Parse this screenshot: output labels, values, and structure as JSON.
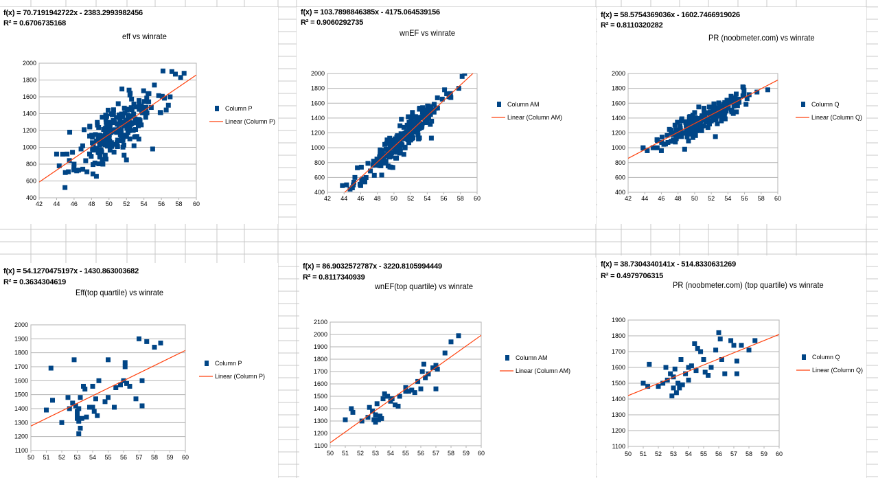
{
  "chart_data": [
    {
      "type": "scatter",
      "equation": "f(x) = 70.7191942722x - 2383.2993982456",
      "r_squared": "R² = 0.6706735168",
      "title": "eff vs winrate",
      "xlim": [
        42,
        60
      ],
      "ylim": [
        400,
        2000
      ],
      "xticks": [
        42,
        44,
        46,
        48,
        50,
        52,
        54,
        56,
        58,
        60
      ],
      "yticks": [
        400,
        600,
        800,
        1000,
        1200,
        1400,
        1600,
        1800,
        2000
      ],
      "legend": [
        "Column P",
        "Linear (Column P)"
      ],
      "trendline": {
        "slope": 70.7191942722,
        "intercept": -2383.2993982456
      },
      "cloud": {
        "center_x": 51,
        "sd_x": 2.8,
        "sd_y": 160,
        "count": 220,
        "seed": 11
      },
      "points": [
        [
          44,
          920
        ],
        [
          44.3,
          780
        ],
        [
          45,
          700
        ],
        [
          45.2,
          920
        ],
        [
          45.5,
          1180
        ],
        [
          46,
          800
        ],
        [
          46.3,
          720
        ],
        [
          46.8,
          980
        ],
        [
          47,
          740
        ],
        [
          55,
          980
        ],
        [
          57,
          1600
        ],
        [
          57.2,
          1900
        ],
        [
          57.6,
          1870
        ],
        [
          58.2,
          1830
        ],
        [
          58.6,
          1880
        ],
        [
          52.3,
          1680
        ],
        [
          56.8,
          1500
        ],
        [
          55.2,
          1740
        ],
        [
          52,
          850
        ],
        [
          49.3,
          800
        ]
      ]
    },
    {
      "type": "scatter",
      "equation": "f(x) = 103.7898846385x - 4175.064539156",
      "r_squared": "R² = 0.9060292735",
      "title": "wnEF vs winrate",
      "xlim": [
        42,
        60
      ],
      "ylim": [
        400,
        2000
      ],
      "xticks": [
        42,
        44,
        46,
        48,
        50,
        52,
        54,
        56,
        58,
        60
      ],
      "yticks": [
        400,
        600,
        800,
        1000,
        1200,
        1400,
        1600,
        1800,
        2000
      ],
      "legend": [
        "Column AM",
        "Linear (Column AM)"
      ],
      "trendline": {
        "slope": 103.7898846385,
        "intercept": -4175.064539156
      },
      "cloud": {
        "center_x": 51,
        "sd_x": 2.9,
        "sd_y": 90,
        "count": 220,
        "seed": 23
      },
      "points": [
        [
          43.8,
          490
        ],
        [
          44.3,
          500
        ],
        [
          45,
          460
        ],
        [
          45.3,
          600
        ],
        [
          45.6,
          730
        ],
        [
          46,
          490
        ],
        [
          46.5,
          540
        ],
        [
          54.5,
          1130
        ],
        [
          57.8,
          1800
        ],
        [
          58.2,
          1960
        ],
        [
          58.5,
          2000
        ],
        [
          56.8,
          1730
        ]
      ]
    },
    {
      "type": "scatter",
      "equation": "f(x) = 58.5754369036x - 1602.7466919026",
      "r_squared": "R² = 0.8110320282",
      "title": "PR (noobmeter.com) vs winrate",
      "xlim": [
        42,
        60
      ],
      "ylim": [
        400,
        2000
      ],
      "xticks": [
        42,
        44,
        46,
        48,
        50,
        52,
        54,
        56,
        58,
        60
      ],
      "yticks": [
        400,
        600,
        800,
        1000,
        1200,
        1400,
        1600,
        1800,
        2000
      ],
      "legend": [
        "Column Q",
        "Linear (Column Q)"
      ],
      "trendline": {
        "slope": 58.5754369036,
        "intercept": -1602.7466919026
      },
      "cloud": {
        "center_x": 51,
        "sd_x": 2.9,
        "sd_y": 80,
        "count": 220,
        "seed": 37
      },
      "points": [
        [
          43.8,
          1000
        ],
        [
          44.3,
          960
        ],
        [
          45,
          1000
        ],
        [
          45.5,
          1000
        ],
        [
          46,
          960
        ],
        [
          46.5,
          1050
        ],
        [
          48.8,
          980
        ],
        [
          52.5,
          1150
        ],
        [
          58.8,
          1780
        ],
        [
          57.5,
          1750
        ],
        [
          55.8,
          1820
        ]
      ]
    },
    {
      "type": "scatter",
      "equation": "f(x) = 54.1270475197x - 1430.863003682",
      "r_squared": "R² = 0.3634304619",
      "title": "Eff(top quartile)  vs winrate",
      "xlim": [
        50,
        60
      ],
      "ylim": [
        1100,
        2000
      ],
      "xticks": [
        50,
        51,
        52,
        53,
        54,
        55,
        56,
        57,
        58,
        59,
        60
      ],
      "yticks": [
        1100,
        1200,
        1300,
        1400,
        1500,
        1600,
        1700,
        1800,
        1900,
        2000
      ],
      "legend": [
        "Column P",
        "Linear (Column P)"
      ],
      "trendline": {
        "slope": 54.1270475197,
        "intercept": -1430.863003682
      },
      "points": [
        [
          51,
          1390
        ],
        [
          51.3,
          1690
        ],
        [
          51.4,
          1460
        ],
        [
          52,
          1300
        ],
        [
          52.4,
          1480
        ],
        [
          52.5,
          1400
        ],
        [
          52.7,
          1440
        ],
        [
          52.8,
          1750
        ],
        [
          52.9,
          1420
        ],
        [
          53,
          1380
        ],
        [
          53,
          1350
        ],
        [
          53,
          1330
        ],
        [
          53.1,
          1400
        ],
        [
          53.1,
          1310
        ],
        [
          53.1,
          1220
        ],
        [
          53.2,
          1260
        ],
        [
          53.2,
          1480
        ],
        [
          53.3,
          1330
        ],
        [
          53.4,
          1560
        ],
        [
          53.5,
          1540
        ],
        [
          53.6,
          1340
        ],
        [
          53.8,
          1410
        ],
        [
          54,
          1410
        ],
        [
          54,
          1560
        ],
        [
          54.1,
          1380
        ],
        [
          54.2,
          1470
        ],
        [
          54.3,
          1350
        ],
        [
          54.4,
          1600
        ],
        [
          54.8,
          1450
        ],
        [
          55,
          1750
        ],
        [
          55,
          1480
        ],
        [
          55.4,
          1410
        ],
        [
          55.5,
          1550
        ],
        [
          55.8,
          1570
        ],
        [
          56,
          1600
        ],
        [
          56.1,
          1730
        ],
        [
          56.1,
          1700
        ],
        [
          56.2,
          1580
        ],
        [
          56.4,
          1560
        ],
        [
          56.8,
          1470
        ],
        [
          57,
          1900
        ],
        [
          57.2,
          1600
        ],
        [
          57.2,
          1420
        ],
        [
          57.5,
          1880
        ],
        [
          58,
          1840
        ],
        [
          58.4,
          1870
        ]
      ]
    },
    {
      "type": "scatter",
      "equation": "f(x) = 86.9032572787x - 3220.8105994449",
      "r_squared": "R² = 0.8117340939",
      "title": "wnEF(top quartile)  vs winrate",
      "xlim": [
        50,
        60
      ],
      "ylim": [
        1100,
        2100
      ],
      "xticks": [
        50,
        51,
        52,
        53,
        54,
        55,
        56,
        57,
        58,
        59,
        60
      ],
      "yticks": [
        1100,
        1200,
        1300,
        1400,
        1500,
        1600,
        1700,
        1800,
        1900,
        2000,
        2100
      ],
      "legend": [
        "Column AM",
        "Linear (Column AM)"
      ],
      "trendline": {
        "slope": 86.9032572787,
        "intercept": -3220.8105994449
      },
      "points": [
        [
          51,
          1310
        ],
        [
          51.4,
          1400
        ],
        [
          51.5,
          1370
        ],
        [
          52.1,
          1300
        ],
        [
          52.5,
          1330
        ],
        [
          52.6,
          1410
        ],
        [
          52.8,
          1380
        ],
        [
          52.9,
          1310
        ],
        [
          53,
          1290
        ],
        [
          53,
          1350
        ],
        [
          53.1,
          1440
        ],
        [
          53.2,
          1310
        ],
        [
          53.3,
          1340
        ],
        [
          53.4,
          1320
        ],
        [
          53.5,
          1480
        ],
        [
          53.6,
          1520
        ],
        [
          53.8,
          1500
        ],
        [
          54,
          1460
        ],
        [
          54.1,
          1480
        ],
        [
          54.3,
          1430
        ],
        [
          54.5,
          1420
        ],
        [
          54.6,
          1500
        ],
        [
          55,
          1540
        ],
        [
          55,
          1570
        ],
        [
          55.2,
          1540
        ],
        [
          55.4,
          1550
        ],
        [
          55.6,
          1530
        ],
        [
          55.8,
          1620
        ],
        [
          56,
          1560
        ],
        [
          56.1,
          1700
        ],
        [
          56.2,
          1760
        ],
        [
          56.3,
          1650
        ],
        [
          56.5,
          1680
        ],
        [
          56.8,
          1730
        ],
        [
          57,
          1560
        ],
        [
          57,
          1750
        ],
        [
          57.1,
          1720
        ],
        [
          57.6,
          1850
        ],
        [
          58,
          1940
        ],
        [
          58.5,
          1990
        ]
      ]
    },
    {
      "type": "scatter",
      "equation": "f(x) = 38.7304340141x - 514.8330631269",
      "r_squared": "R² = 0.4979706315",
      "title": "PR (noobmeter.com) (top quartile) vs winrate",
      "xlim": [
        50,
        60
      ],
      "ylim": [
        1100,
        1900
      ],
      "xticks": [
        50,
        51,
        52,
        53,
        54,
        55,
        56,
        57,
        58,
        59,
        60
      ],
      "yticks": [
        1100,
        1200,
        1300,
        1400,
        1500,
        1600,
        1700,
        1800,
        1900
      ],
      "legend": [
        "Column Q",
        "Linear (Column Q)"
      ],
      "trendline": {
        "slope": 38.7304340141,
        "intercept": -514.8330631269
      },
      "points": [
        [
          51,
          1500
        ],
        [
          51.3,
          1480
        ],
        [
          51.4,
          1620
        ],
        [
          52,
          1480
        ],
        [
          52.3,
          1500
        ],
        [
          52.5,
          1600
        ],
        [
          52.6,
          1520
        ],
        [
          52.8,
          1560
        ],
        [
          52.9,
          1420
        ],
        [
          53,
          1470
        ],
        [
          53,
          1540
        ],
        [
          53.1,
          1590
        ],
        [
          53.2,
          1440
        ],
        [
          53.3,
          1500
        ],
        [
          53.4,
          1470
        ],
        [
          53.5,
          1650
        ],
        [
          53.6,
          1490
        ],
        [
          53.8,
          1560
        ],
        [
          54,
          1520
        ],
        [
          54,
          1600
        ],
        [
          54.2,
          1610
        ],
        [
          54.4,
          1750
        ],
        [
          54.5,
          1580
        ],
        [
          54.6,
          1720
        ],
        [
          54.8,
          1700
        ],
        [
          55,
          1650
        ],
        [
          55.1,
          1570
        ],
        [
          55.3,
          1550
        ],
        [
          55.5,
          1600
        ],
        [
          55.8,
          1710
        ],
        [
          56,
          1820
        ],
        [
          56.1,
          1780
        ],
        [
          56.2,
          1650
        ],
        [
          56.4,
          1560
        ],
        [
          56.8,
          1770
        ],
        [
          57,
          1740
        ],
        [
          57.2,
          1640
        ],
        [
          57.2,
          1560
        ],
        [
          57.5,
          1740
        ],
        [
          58,
          1710
        ],
        [
          58.4,
          1770
        ]
      ]
    }
  ]
}
